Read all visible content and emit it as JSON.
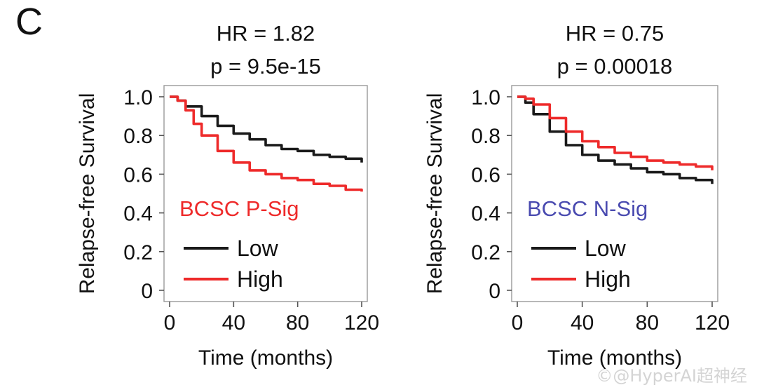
{
  "figure": {
    "panel_label": "C",
    "watermark": "©@HyperAI超神经",
    "colors": {
      "low": "#1a1a1a",
      "high": "#ee2a2a",
      "psig": "#ee2a2a",
      "nsig": "#4a4bb0"
    }
  },
  "chart_data": [
    {
      "type": "line",
      "title": "HR = 1.82",
      "subtitle": "p = 9.5e-15",
      "annotation": "BCSC P-Sig",
      "annotation_color": "#ee2a2a",
      "xlabel": "Time (months)",
      "ylabel": "Relapse-free Survival",
      "xlim": [
        0,
        120
      ],
      "ylim": [
        0,
        1.0
      ],
      "xticks": [
        "0",
        "40",
        "80",
        "120"
      ],
      "yticks": [
        "0",
        "0.2",
        "0.4",
        "0.6",
        "0.8",
        "1.0"
      ],
      "grid": false,
      "legend_position": "bottom-left",
      "series": [
        {
          "name": "Low",
          "color": "#1a1a1a",
          "x": [
            0,
            5,
            10,
            20,
            30,
            40,
            50,
            60,
            70,
            80,
            90,
            100,
            110,
            120
          ],
          "y": [
            1.0,
            0.98,
            0.95,
            0.9,
            0.85,
            0.81,
            0.78,
            0.75,
            0.73,
            0.72,
            0.7,
            0.69,
            0.68,
            0.66
          ]
        },
        {
          "name": "High",
          "color": "#ee2a2a",
          "x": [
            0,
            5,
            10,
            15,
            20,
            30,
            40,
            50,
            60,
            70,
            80,
            90,
            100,
            110,
            120
          ],
          "y": [
            1.0,
            0.98,
            0.93,
            0.86,
            0.8,
            0.72,
            0.66,
            0.62,
            0.6,
            0.58,
            0.57,
            0.55,
            0.54,
            0.52,
            0.51
          ]
        }
      ]
    },
    {
      "type": "line",
      "title": "HR = 0.75",
      "subtitle": "p = 0.00018",
      "annotation": "BCSC N-Sig",
      "annotation_color": "#4a4bb0",
      "xlabel": "Time (months)",
      "ylabel": "Relapse-free Survival",
      "xlim": [
        0,
        120
      ],
      "ylim": [
        0,
        1.0
      ],
      "xticks": [
        "0",
        "40",
        "80",
        "120"
      ],
      "yticks": [
        "0",
        "0.2",
        "0.4",
        "0.6",
        "0.8",
        "1.0"
      ],
      "grid": false,
      "legend_position": "bottom-left",
      "series": [
        {
          "name": "Low",
          "color": "#1a1a1a",
          "x": [
            0,
            5,
            10,
            20,
            30,
            40,
            50,
            60,
            70,
            80,
            90,
            100,
            110,
            120
          ],
          "y": [
            1.0,
            0.97,
            0.91,
            0.82,
            0.75,
            0.7,
            0.67,
            0.65,
            0.63,
            0.61,
            0.6,
            0.58,
            0.57,
            0.55
          ]
        },
        {
          "name": "High",
          "color": "#ee2a2a",
          "x": [
            0,
            5,
            10,
            20,
            30,
            40,
            50,
            60,
            70,
            80,
            90,
            100,
            110,
            120
          ],
          "y": [
            1.0,
            0.99,
            0.96,
            0.89,
            0.82,
            0.77,
            0.74,
            0.71,
            0.69,
            0.67,
            0.66,
            0.65,
            0.64,
            0.62
          ]
        }
      ]
    }
  ]
}
